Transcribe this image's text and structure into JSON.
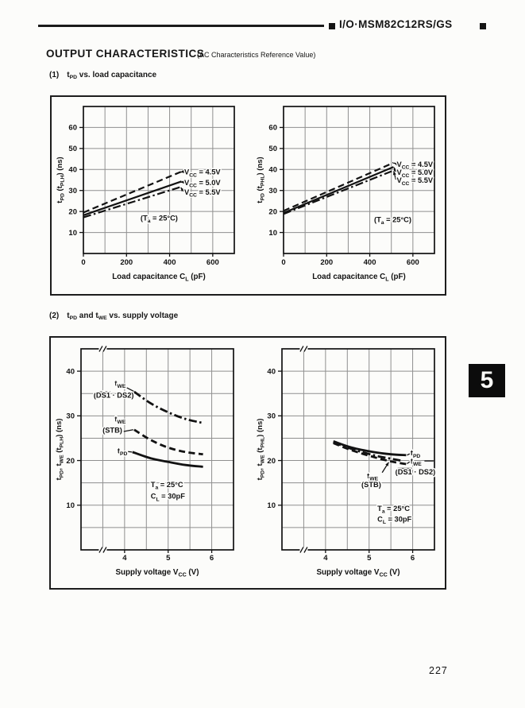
{
  "colors": {
    "ink": "#121212",
    "grid": "#8f8f8f",
    "paper": "#fcfcfa"
  },
  "page": {
    "brand": "I/O·MSM82C12RS/GS",
    "title": "OUTPUT CHARACTERISTICS",
    "title_note": "(AC Characteristics Reference Value)",
    "tab_number": "5",
    "page_number": "227"
  },
  "sections": [
    {
      "no": "(1)",
      "title_rich": "t_PD_ vs. load capacitance"
    },
    {
      "no": "(2)",
      "title_rich": "t_PD_ and t_WE_ vs. supply voltage"
    }
  ],
  "chart_data": [
    {
      "name": "tpd-tplh-vs-load-capacitance",
      "type": "line",
      "xlabel_rich": "Load capacitance C_L_ (pF)",
      "ylabel_rich": "t_PD_ (t_PLH_) (ns)",
      "xlim": [
        0,
        700
      ],
      "ylim": [
        0,
        70
      ],
      "xgrid_step": 100,
      "ygrid_step": 10,
      "xticks": [
        {
          "v": 0,
          "label": "0"
        },
        {
          "v": 200,
          "label": "200"
        },
        {
          "v": 400,
          "label": "400"
        },
        {
          "v": 600,
          "label": "600"
        }
      ],
      "yticks": [
        {
          "v": 10,
          "label": "10"
        },
        {
          "v": 20,
          "label": "20"
        },
        {
          "v": 30,
          "label": "30"
        },
        {
          "v": 40,
          "label": "40"
        },
        {
          "v": 50,
          "label": "50"
        },
        {
          "v": 60,
          "label": "60"
        }
      ],
      "series": [
        {
          "name": "Vcc = 4.5V",
          "style": "dashed",
          "points": [
            [
              0,
              19.5
            ],
            [
              455,
              39.0
            ]
          ]
        },
        {
          "name": "Vcc = 5.0V",
          "style": "solid",
          "points": [
            [
              0,
              18.2
            ],
            [
              455,
              34.3
            ]
          ]
        },
        {
          "name": "Vcc = 5.5V",
          "style": "dashdot",
          "points": [
            [
              0,
              17.2
            ],
            [
              455,
              31.8
            ]
          ]
        }
      ],
      "annotations": [
        {
          "text": "V_CC_ = 4.5V",
          "x": 468,
          "y": 38.8,
          "anchor": "start"
        },
        {
          "text": "V_CC_ = 5.0V",
          "x": 468,
          "y": 33.8,
          "anchor": "start"
        },
        {
          "text": "V_CC_ = 5.5V",
          "x": 468,
          "y": 29.2,
          "anchor": "start"
        },
        {
          "text": "(T_a_ = 25°C)",
          "x": 265,
          "y": 17.0,
          "anchor": "start"
        }
      ],
      "leaders": [
        {
          "from": [
            464,
            39.0
          ],
          "to": [
            450,
            38.7
          ],
          "arrow": true
        },
        {
          "from": [
            464,
            34.0
          ],
          "to": [
            450,
            34.0
          ],
          "arrow": true
        },
        {
          "from": [
            464,
            29.6
          ],
          "to": [
            452,
            31.4
          ],
          "arrow": true
        }
      ]
    },
    {
      "name": "tpd-tphl-vs-load-capacitance",
      "type": "line",
      "xlabel_rich": "Load capacitance C_L_ (pF)",
      "ylabel_rich": "t_PD_ (t_PHL_) (ns)",
      "xlim": [
        0,
        700
      ],
      "ylim": [
        0,
        70
      ],
      "xgrid_step": 100,
      "ygrid_step": 10,
      "xticks": [
        {
          "v": 0,
          "label": "0"
        },
        {
          "v": 200,
          "label": "200"
        },
        {
          "v": 400,
          "label": "400"
        },
        {
          "v": 600,
          "label": "600"
        }
      ],
      "yticks": [
        {
          "v": 10,
          "label": "10"
        },
        {
          "v": 20,
          "label": "20"
        },
        {
          "v": 30,
          "label": "30"
        },
        {
          "v": 40,
          "label": "40"
        },
        {
          "v": 50,
          "label": "50"
        },
        {
          "v": 60,
          "label": "60"
        }
      ],
      "series": [
        {
          "name": "Vcc = 4.5V",
          "style": "dashed",
          "points": [
            [
              0,
              20.3
            ],
            [
              510,
              43.2
            ]
          ]
        },
        {
          "name": "Vcc = 5.0V",
          "style": "solid",
          "points": [
            [
              0,
              19.3
            ],
            [
              510,
              41.2
            ]
          ]
        },
        {
          "name": "Vcc = 5.5V",
          "style": "dashdot",
          "points": [
            [
              0,
              18.8
            ],
            [
              510,
              39.5
            ]
          ]
        }
      ],
      "annotations": [
        {
          "text": "V_CC_ = 4.5V",
          "x": 525,
          "y": 42.5,
          "anchor": "start"
        },
        {
          "text": "V_CC_ = 5.0V",
          "x": 525,
          "y": 38.6,
          "anchor": "start"
        },
        {
          "text": "V_CC_ = 5.5V",
          "x": 525,
          "y": 34.8,
          "anchor": "start"
        },
        {
          "text": "(T_a_ = 25°C)",
          "x": 420,
          "y": 16.2,
          "anchor": "start"
        }
      ],
      "leaders": [
        {
          "from": [
            521,
            42.8
          ],
          "to": [
            512,
            43.1
          ],
          "arrow": true
        },
        {
          "from": [
            521,
            38.9
          ],
          "to": [
            512,
            41.0
          ],
          "arrow": true
        },
        {
          "from": [
            521,
            35.2
          ],
          "to": [
            511,
            39.2
          ],
          "arrow": true
        }
      ]
    },
    {
      "name": "tpd-twe-tplh-vs-supply-voltage",
      "type": "line",
      "xlabel_rich": "Supply voltage V_CC_ (V)",
      "ylabel_rich": "t_PD_, t_WE_ (t_PLH_) (ns)",
      "xlim": [
        3,
        6.5
      ],
      "ylim": [
        0,
        45
      ],
      "xgrid_step": 0.5,
      "ygrid_step": 5,
      "break_x": 3.5,
      "xticks": [
        {
          "v": 4,
          "label": "4"
        },
        {
          "v": 5,
          "label": "5"
        },
        {
          "v": 6,
          "label": "6"
        }
      ],
      "yticks": [
        {
          "v": 10,
          "label": "10"
        },
        {
          "v": 20,
          "label": "20"
        },
        {
          "v": 30,
          "label": "30"
        },
        {
          "v": 40,
          "label": "40"
        }
      ],
      "series": [
        {
          "name": "tWE (DS1 · DS2)",
          "style": "dashdot",
          "points": [
            [
              4.22,
              35.4
            ],
            [
              4.6,
              32.8
            ],
            [
              5.0,
              30.8
            ],
            [
              5.4,
              29.3
            ],
            [
              5.8,
              28.4
            ]
          ]
        },
        {
          "name": "tWE (STB)",
          "style": "dashed",
          "points": [
            [
              4.22,
              26.9
            ],
            [
              4.6,
              24.6
            ],
            [
              5.0,
              22.9
            ],
            [
              5.4,
              21.9
            ],
            [
              5.8,
              21.4
            ]
          ]
        },
        {
          "name": "tPD",
          "style": "solid",
          "points": [
            [
              4.18,
              21.9
            ],
            [
              4.6,
              20.5
            ],
            [
              5.0,
              19.7
            ],
            [
              5.4,
              19.0
            ],
            [
              5.8,
              18.6
            ]
          ]
        }
      ],
      "annotations": [
        {
          "text": "t_WE_",
          "x": 3.9,
          "y": 37.3,
          "anchor": "middle"
        },
        {
          "text": "(~DS1~ · DS2)",
          "x": 3.75,
          "y": 34.6,
          "anchor": "middle"
        },
        {
          "text": "t_WE_",
          "x": 3.9,
          "y": 29.3,
          "anchor": "middle"
        },
        {
          "text": "(STB)",
          "x": 3.72,
          "y": 26.8,
          "anchor": "middle"
        },
        {
          "text": "t_PD_",
          "x": 3.95,
          "y": 22.2,
          "anchor": "middle"
        },
        {
          "text": "T_a_ = 25°C",
          "x": 4.6,
          "y": 14.6,
          "anchor": "start"
        },
        {
          "text": "C_L_ = 30pF",
          "x": 4.6,
          "y": 12.0,
          "anchor": "start"
        }
      ],
      "leaders": [
        {
          "from": [
            4.05,
            36.3
          ],
          "to": [
            4.21,
            35.5
          ]
        },
        {
          "from": [
            3.98,
            26.5
          ],
          "to": [
            4.2,
            26.9
          ]
        },
        {
          "from": [
            4.08,
            22.0
          ],
          "to": [
            4.17,
            21.9
          ]
        }
      ]
    },
    {
      "name": "tpd-twe-tphl-vs-supply-voltage",
      "type": "line",
      "xlabel_rich": "Supply voltage V_CC_ (V)",
      "ylabel_rich": "t_PD_, t_WE_ (t_PHL_) (ns)",
      "xlim": [
        3,
        6.5
      ],
      "ylim": [
        0,
        45
      ],
      "xgrid_step": 0.5,
      "ygrid_step": 5,
      "break_x": 3.5,
      "xticks": [
        {
          "v": 4,
          "label": "4"
        },
        {
          "v": 5,
          "label": "5"
        },
        {
          "v": 6,
          "label": "6"
        }
      ],
      "yticks": [
        {
          "v": 10,
          "label": "10"
        },
        {
          "v": 20,
          "label": "20"
        },
        {
          "v": 30,
          "label": "30"
        },
        {
          "v": 40,
          "label": "40"
        }
      ],
      "series": [
        {
          "name": "tPD",
          "style": "solid",
          "points": [
            [
              4.18,
              24.3
            ],
            [
              4.6,
              22.9
            ],
            [
              5.1,
              21.9
            ],
            [
              5.5,
              21.4
            ],
            [
              5.85,
              21.2
            ]
          ]
        },
        {
          "name": "tWE (STB)",
          "style": "dashdot",
          "points": [
            [
              4.18,
              24.1
            ],
            [
              4.6,
              22.6
            ],
            [
              5.1,
              21.2
            ],
            [
              5.5,
              20.4
            ],
            [
              5.72,
              20.0
            ]
          ]
        },
        {
          "name": "tWE (DS1 · DS2)",
          "style": "dashed",
          "points": [
            [
              4.18,
              23.9
            ],
            [
              4.6,
              22.3
            ],
            [
              5.1,
              20.8
            ],
            [
              5.5,
              19.8
            ],
            [
              5.85,
              19.2
            ]
          ]
        }
      ],
      "annotations": [
        {
          "text": "t_PD_",
          "x": 5.95,
          "y": 21.7,
          "anchor": "start"
        },
        {
          "text": "t_WE_",
          "x": 5.95,
          "y": 19.9,
          "anchor": "start"
        },
        {
          "text": "(~DS1~ · DS2)",
          "x": 5.6,
          "y": 17.5,
          "anchor": "start"
        },
        {
          "text": "t_WE_",
          "x": 5.08,
          "y": 16.6,
          "anchor": "middle"
        },
        {
          "text": "(STB)",
          "x": 5.05,
          "y": 14.6,
          "anchor": "middle"
        },
        {
          "text": "T_a_ = 25°C",
          "x": 5.19,
          "y": 9.3,
          "anchor": "start"
        },
        {
          "text": "C_L_ = 30pF",
          "x": 5.19,
          "y": 6.9,
          "anchor": "start"
        }
      ],
      "leaders": [
        {
          "from": [
            5.87,
            21.2
          ],
          "to": [
            5.93,
            21.5
          ]
        },
        {
          "from": [
            5.87,
            19.3
          ],
          "to": [
            5.93,
            19.7
          ]
        },
        {
          "from": [
            6.27,
            19.9
          ],
          "to": [
            6.48,
            19.9
          ]
        },
        {
          "from": [
            5.3,
            17.3
          ],
          "to": [
            5.45,
            19.6
          ],
          "arrow": true
        }
      ]
    }
  ]
}
